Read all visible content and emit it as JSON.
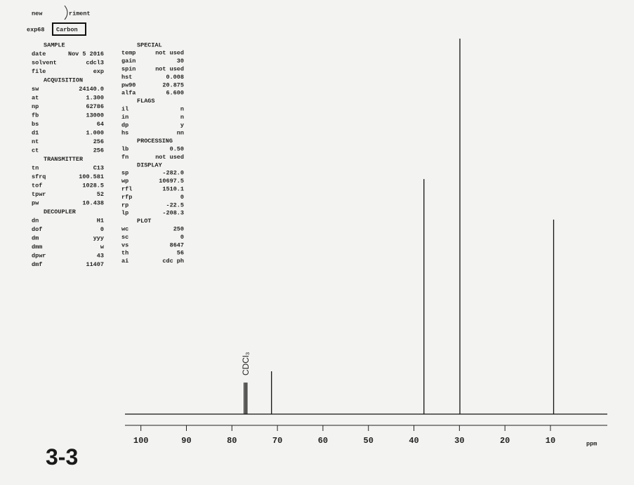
{
  "header": {
    "line1": [
      "new",
      "riment"
    ],
    "exp": "exp68",
    "name": "Carbon"
  },
  "parameters": {
    "left": [
      {
        "heading": "SAMPLE",
        "rows": [
          [
            "date",
            "Nov  5 2016"
          ],
          [
            "solvent",
            "cdcl3"
          ],
          [
            "file",
            "exp"
          ]
        ]
      },
      {
        "heading": "ACQUISITION",
        "rows": [
          [
            "sw",
            "24140.0"
          ],
          [
            "at",
            "1.300"
          ],
          [
            "np",
            "62786"
          ],
          [
            "fb",
            "13000"
          ],
          [
            "bs",
            "64"
          ],
          [
            "d1",
            "1.000"
          ],
          [
            "nt",
            "256"
          ],
          [
            "ct",
            "256"
          ]
        ]
      },
      {
        "heading": "TRANSMITTER",
        "rows": [
          [
            "tn",
            "C13"
          ],
          [
            "sfrq",
            "100.581"
          ],
          [
            "tof",
            "1028.5"
          ],
          [
            "tpwr",
            "52"
          ],
          [
            "pw",
            "10.438"
          ]
        ]
      },
      {
        "heading": "DECOUPLER",
        "rows": [
          [
            "dn",
            "H1"
          ],
          [
            "dof",
            "0"
          ],
          [
            "dm",
            "yyy"
          ],
          [
            "dmm",
            "w"
          ],
          [
            "dpwr",
            "43"
          ],
          [
            "dmf",
            "11407"
          ]
        ]
      }
    ],
    "right": [
      {
        "heading": "SPECIAL",
        "rows": [
          [
            "temp",
            "not used"
          ],
          [
            "gain",
            "30"
          ],
          [
            "spin",
            "not used"
          ],
          [
            "hst",
            "0.008"
          ],
          [
            "pw90",
            "20.875"
          ],
          [
            "alfa",
            "6.600"
          ]
        ]
      },
      {
        "heading": "FLAGS",
        "rows": [
          [
            "il",
            "n"
          ],
          [
            "in",
            "n"
          ],
          [
            "dp",
            "y"
          ],
          [
            "hs",
            "nn"
          ]
        ]
      },
      {
        "heading": "PROCESSING",
        "rows": [
          [
            "lb",
            "0.50"
          ],
          [
            "fn",
            "not used"
          ]
        ]
      },
      {
        "heading": "DISPLAY",
        "rows": [
          [
            "sp",
            "-282.0"
          ],
          [
            "wp",
            "10697.5"
          ],
          [
            "rfl",
            "1510.1"
          ],
          [
            "rfp",
            "0"
          ],
          [
            "rp",
            "-22.5"
          ],
          [
            "lp",
            "-208.3"
          ]
        ]
      },
      {
        "heading": "PLOT",
        "rows": [
          [
            "wc",
            "250"
          ],
          [
            "sc",
            "0"
          ],
          [
            "vs",
            "8647"
          ],
          [
            "th",
            "56"
          ],
          [
            "ai",
            "cdc  ph"
          ]
        ]
      }
    ]
  },
  "label": "3-3",
  "chart_data": {
    "type": "spectrum",
    "x_label": "ppm",
    "annotation": "CDCl₃",
    "x": [
      77.3,
      77.0,
      76.7,
      71.3,
      37.8,
      29.9,
      9.3
    ],
    "values": [
      8.4,
      8.4,
      8.4,
      11.4,
      62.6,
      100,
      51.8
    ],
    "color": "#111111",
    "xlim": [
      103.5,
      -2.5
    ],
    "xticks": [
      100,
      90,
      80,
      70,
      60,
      50,
      40,
      30,
      20,
      10
    ],
    "ylim": [
      0,
      100
    ]
  }
}
